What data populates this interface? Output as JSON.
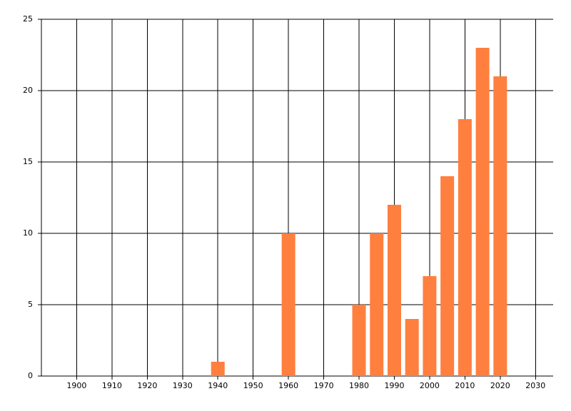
{
  "chart_data": {
    "type": "bar",
    "x": [
      1940,
      1960,
      1980,
      1985,
      1990,
      1995,
      2000,
      2005,
      2010,
      2015,
      2020
    ],
    "values": [
      1,
      10,
      5,
      10,
      12,
      4,
      7,
      14,
      18,
      23,
      21
    ],
    "color": "#ff7f3f",
    "xlim": [
      1890,
      2035
    ],
    "xticks": [
      1900,
      1910,
      1920,
      1930,
      1940,
      1950,
      1960,
      1970,
      1980,
      1990,
      2000,
      2010,
      2020,
      2030
    ],
    "ylim": [
      0,
      25
    ],
    "yticks": [
      0,
      5,
      10,
      15,
      20,
      25
    ],
    "grid": true
  }
}
